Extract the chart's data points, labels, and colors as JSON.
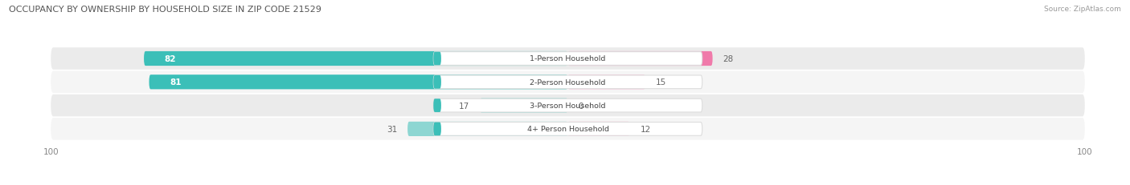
{
  "title": "OCCUPANCY BY OWNERSHIP BY HOUSEHOLD SIZE IN ZIP CODE 21529",
  "source": "Source: ZipAtlas.com",
  "categories": [
    "1-Person Household",
    "2-Person Household",
    "3-Person Household",
    "4+ Person Household"
  ],
  "owner_values": [
    82,
    81,
    17,
    31
  ],
  "renter_values": [
    28,
    15,
    0,
    12
  ],
  "owner_color_large": "#3bbfb8",
  "owner_color_small": "#8dd6d2",
  "renter_color_large": "#f07aaa",
  "renter_color_small": "#f5b0cc",
  "row_bg_odd": "#ebebeb",
  "row_bg_even": "#f5f5f5",
  "axis_max": 100,
  "figsize": [
    14.06,
    2.32
  ],
  "dpi": 100,
  "bar_height": 0.62,
  "large_threshold": 50
}
